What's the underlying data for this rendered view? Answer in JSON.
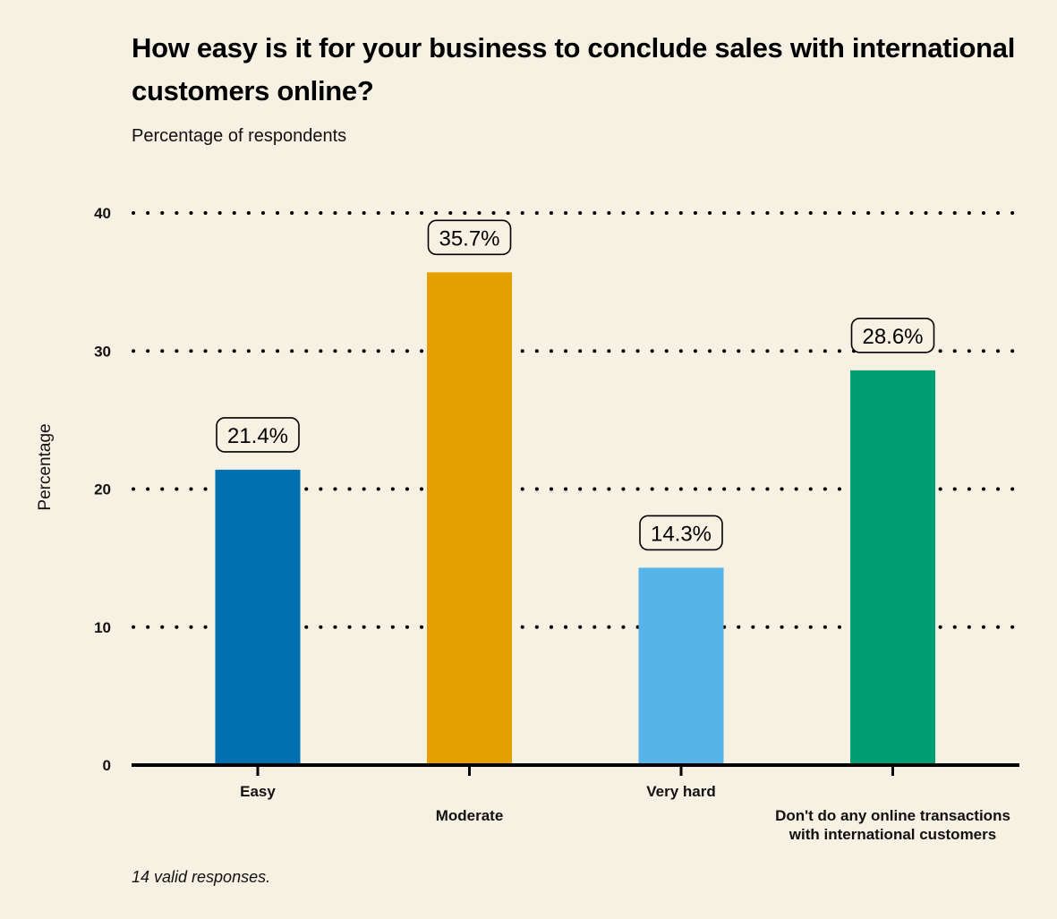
{
  "title": "How easy is it for your business to conclude sales with international customers online?",
  "subtitle": "Percentage of respondents",
  "footnote": "14 valid responses.",
  "colors": {
    "background": "#f7f1e3",
    "Easy": "#0070b0",
    "Moderate": "#e5a000",
    "Very hard": "#57b4e8",
    "Don't do any online transactions with international customers": "#009e72",
    "grid": "#000000"
  },
  "chart_data": {
    "type": "bar",
    "title": "How easy is it for your business to conclude sales with international customers online?",
    "subtitle": "Percentage of respondents",
    "ylabel": "Percentage",
    "xlabel": "",
    "ylim": [
      0,
      40
    ],
    "yticks": [
      0,
      10,
      20,
      30,
      40
    ],
    "grid": true,
    "categories": [
      "Easy",
      "Moderate",
      "Very hard",
      "Don't do any online transactions with international customers"
    ],
    "category_lines": [
      [
        "Easy"
      ],
      [
        "Moderate"
      ],
      [
        "Very hard"
      ],
      [
        "Don't do any online transactions",
        "with international customers"
      ]
    ],
    "values": [
      21.4,
      35.7,
      14.3,
      28.6
    ],
    "data_labels": [
      "21.4%",
      "35.7%",
      "14.3%",
      "28.6%"
    ]
  }
}
